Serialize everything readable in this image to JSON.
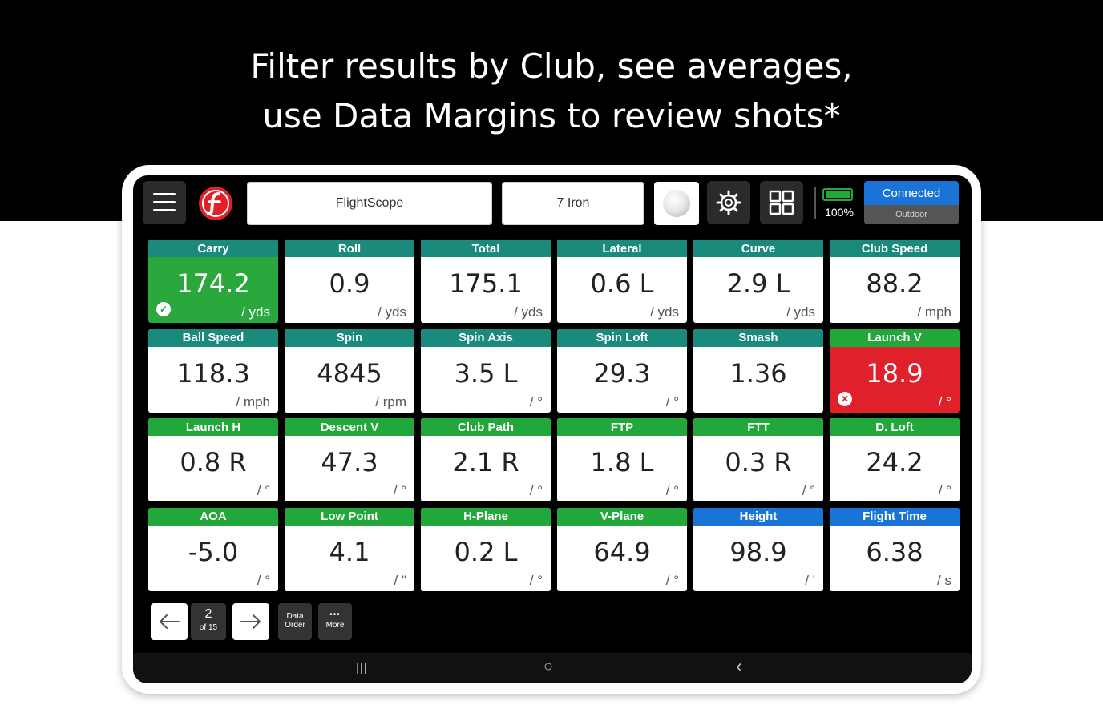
{
  "headline": {
    "line1": "Filter results by Club, see averages,",
    "line2": "use Data Margins to review shots*"
  },
  "app": {
    "device_field": "FlightScope",
    "club_field": "7 Iron",
    "battery": "100%",
    "connection": {
      "status": "Connected",
      "mode": "Outdoor"
    }
  },
  "colors": {
    "teal_header": "#1a8a7c",
    "green_header": "#22a83a",
    "blue_header": "#1a73d6",
    "good_tile": "#2aa83e",
    "bad_tile": "#e0202a"
  },
  "metrics": [
    {
      "label": "Carry",
      "value": "174.2",
      "unit": "/ yds",
      "header": "teal",
      "state": "good"
    },
    {
      "label": "Roll",
      "value": "0.9",
      "unit": "/ yds",
      "header": "teal",
      "state": "normal"
    },
    {
      "label": "Total",
      "value": "175.1",
      "unit": "/ yds",
      "header": "teal",
      "state": "normal"
    },
    {
      "label": "Lateral",
      "value": "0.6 L",
      "unit": "/ yds",
      "header": "teal",
      "state": "normal"
    },
    {
      "label": "Curve",
      "value": "2.9 L",
      "unit": "/ yds",
      "header": "teal",
      "state": "normal"
    },
    {
      "label": "Club Speed",
      "value": "88.2",
      "unit": "/ mph",
      "header": "teal",
      "state": "normal"
    },
    {
      "label": "Ball Speed",
      "value": "118.3",
      "unit": "/ mph",
      "header": "teal",
      "state": "normal"
    },
    {
      "label": "Spin",
      "value": "4845",
      "unit": "/ rpm",
      "header": "teal",
      "state": "normal"
    },
    {
      "label": "Spin Axis",
      "value": "3.5 L",
      "unit": "/ °",
      "header": "teal",
      "state": "normal"
    },
    {
      "label": "Spin Loft",
      "value": "29.3",
      "unit": "/ °",
      "header": "teal",
      "state": "normal"
    },
    {
      "label": "Smash",
      "value": "1.36",
      "unit": "",
      "header": "teal",
      "state": "normal"
    },
    {
      "label": "Launch V",
      "value": "18.9",
      "unit": "/ °",
      "header": "green",
      "state": "bad"
    },
    {
      "label": "Launch H",
      "value": "0.8 R",
      "unit": "/ °",
      "header": "green",
      "state": "normal"
    },
    {
      "label": "Descent V",
      "value": "47.3",
      "unit": "/ °",
      "header": "green",
      "state": "normal"
    },
    {
      "label": "Club Path",
      "value": "2.1 R",
      "unit": "/ °",
      "header": "green",
      "state": "normal"
    },
    {
      "label": "FTP",
      "value": "1.8 L",
      "unit": "/ °",
      "header": "green",
      "state": "normal"
    },
    {
      "label": "FTT",
      "value": "0.3 R",
      "unit": "/ °",
      "header": "green",
      "state": "normal"
    },
    {
      "label": "D. Loft",
      "value": "24.2",
      "unit": "/ °",
      "header": "green",
      "state": "normal"
    },
    {
      "label": "AOA",
      "value": "-5.0",
      "unit": "/ °",
      "header": "green",
      "state": "normal"
    },
    {
      "label": "Low Point",
      "value": "4.1",
      "unit": "/ \"",
      "header": "green",
      "state": "normal"
    },
    {
      "label": "H-Plane",
      "value": "0.2 L",
      "unit": "/ °",
      "header": "green",
      "state": "normal"
    },
    {
      "label": "V-Plane",
      "value": "64.9",
      "unit": "/ °",
      "header": "green",
      "state": "normal"
    },
    {
      "label": "Height",
      "value": "98.9",
      "unit": "/ '",
      "header": "blue",
      "state": "normal"
    },
    {
      "label": "Flight Time",
      "value": "6.38",
      "unit": "/ s",
      "header": "blue",
      "state": "normal"
    }
  ],
  "pager": {
    "current": "2",
    "of": "of 15",
    "data_order_line1": "Data",
    "data_order_line2": "Order",
    "more_dots": "•••",
    "more_label": "More"
  },
  "sysbar": {
    "recents": "|||",
    "home": "○",
    "back": "‹"
  },
  "icons": [
    "menu-icon",
    "flightscope-logo-icon",
    "golf-ball-icon",
    "gear-icon",
    "grid-icon",
    "battery-icon",
    "arrow-left-icon",
    "arrow-right-icon"
  ]
}
